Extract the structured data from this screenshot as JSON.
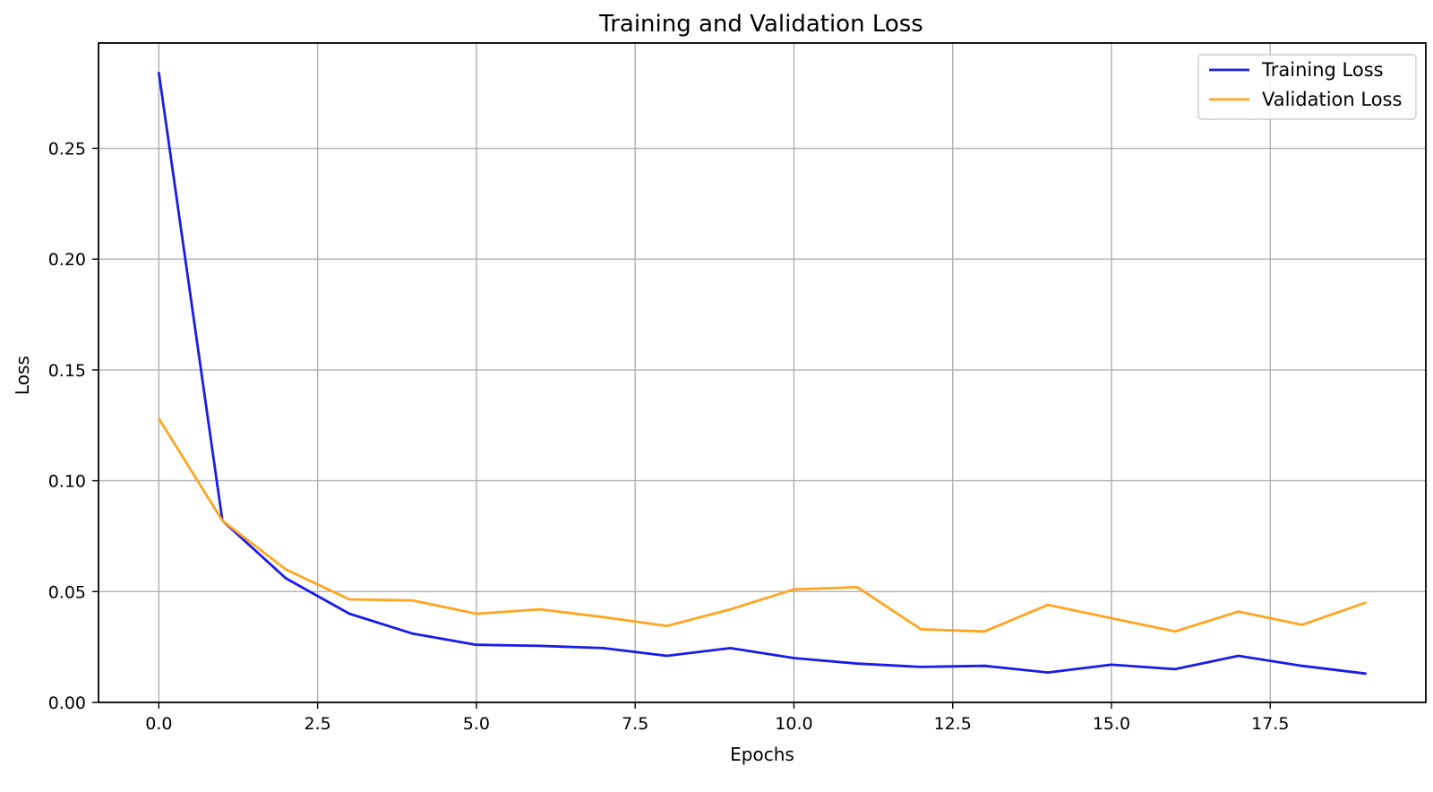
{
  "chart_data": {
    "type": "line",
    "title": "Training and Validation Loss",
    "xlabel": "Epochs",
    "ylabel": "Loss",
    "xlim": [
      -0.95,
      19.95
    ],
    "ylim": [
      0,
      0.2975
    ],
    "xticks": [
      0,
      2.5,
      5,
      7.5,
      10,
      12.5,
      15,
      17.5
    ],
    "xtick_labels": [
      "0.0",
      "2.5",
      "5.0",
      "7.5",
      "10.0",
      "12.5",
      "15.0",
      "17.5"
    ],
    "yticks": [
      0,
      0.05,
      0.1,
      0.15,
      0.2,
      0.25
    ],
    "ytick_labels": [
      "0.00",
      "0.05",
      "0.10",
      "0.15",
      "0.20",
      "0.25"
    ],
    "grid": true,
    "legend_position": "top-right",
    "x": [
      0,
      1,
      2,
      3,
      4,
      5,
      6,
      7,
      8,
      9,
      10,
      11,
      12,
      13,
      14,
      15,
      16,
      17,
      18,
      19
    ],
    "series": [
      {
        "name": "Training Loss",
        "color": "#1a1aeb",
        "values": [
          0.284,
          0.082,
          0.056,
          0.04,
          0.031,
          0.026,
          0.0255,
          0.0245,
          0.021,
          0.0245,
          0.02,
          0.0175,
          0.016,
          0.0165,
          0.0135,
          0.017,
          0.015,
          0.021,
          0.0165,
          0.013
        ]
      },
      {
        "name": "Validation Loss",
        "color": "#ffa521",
        "values": [
          0.128,
          0.082,
          0.06,
          0.0465,
          0.046,
          0.04,
          0.042,
          0.0385,
          0.0345,
          0.042,
          0.051,
          0.052,
          0.033,
          0.032,
          0.044,
          0.038,
          0.032,
          0.041,
          0.035,
          0.045
        ]
      }
    ]
  }
}
